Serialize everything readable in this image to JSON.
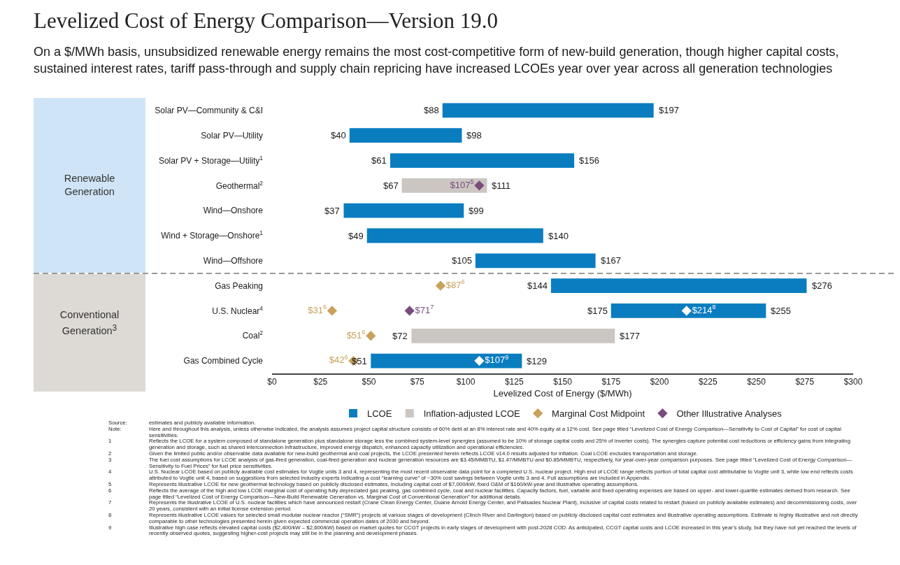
{
  "chart_data": {
    "type": "bar",
    "orientation": "horizontal",
    "title": "Levelized Cost of Energy Comparison—Version 19.0",
    "subtitle": "On a $/MWh basis, unsubsidized renewable energy remains the most cost-competitive form of new-build generation, though higher capital costs, sustained interest rates, tariff pass-through and supply chain repricing have increased LCOEs year over year across all generation technologies",
    "categories": [
      "Solar PV—Community & C&I",
      "Solar PV—Utility",
      "Solar PV + Storage—Utility$^{1}$",
      "Geothermal$^{2}$",
      "Wind—Onshore",
      "Wind + Storage—Onshore$^{1}$",
      "Wind—Offshore",
      "Gas Peaking",
      "U.S. Nuclear$^{4}$",
      "Coal$^{2}$",
      "Gas Combined Cycle"
    ],
    "series": [
      {
        "name": "LCOE",
        "color": "#0a7dc0",
        "base": [
          88,
          40,
          61,
          null,
          37,
          49,
          105,
          144,
          175,
          null,
          51
        ],
        "values": [
          109,
          58,
          95,
          null,
          62,
          91,
          62,
          132,
          80,
          null,
          78
        ]
      },
      {
        "name": "Inflation-adjusted LCOE",
        "color": "#cbc6c1",
        "base": [
          null,
          null,
          null,
          67,
          null,
          null,
          null,
          null,
          null,
          72,
          null
        ],
        "values": [
          null,
          null,
          null,
          44,
          null,
          null,
          null,
          null,
          null,
          105,
          null
        ]
      },
      {
        "name": "Marginal Cost Midpoint",
        "type": "scatter",
        "color": "#c9a15b",
        "x": [
          "Gas Peaking",
          "U.S. Nuclear$^{4}$",
          "Coal$^{2}$",
          "Gas Combined Cycle"
        ],
        "values": [
          87,
          31,
          51,
          42
        ],
        "value_labels": [
          "$87$^{6}$",
          "$31$^{6}$",
          "$51$^{6}$",
          "$42$^{6}$"
        ]
      },
      {
        "name": "Other Illustrative Analyses",
        "type": "scatter",
        "colors": [
          "#7b4a7f",
          "#7b4a7f",
          "#ffffff",
          "#ffffff"
        ],
        "x": [
          "Geothermal$^{2}$",
          "U.S. Nuclear$^{4}$",
          "U.S. Nuclear$^{4}$",
          "Gas Combined Cycle"
        ],
        "values": [
          107,
          71,
          214,
          107
        ],
        "value_labels": [
          "$107$^{5}$",
          "$71$^{7}$",
          "$214$^{8}$",
          "$107$^{9}$"
        ]
      }
    ],
    "xlim": [
      0,
      300
    ],
    "xticks": [
      {
        "value": 0,
        "label": "$0"
      },
      {
        "value": 25,
        "label": "$25"
      },
      {
        "value": 50,
        "label": "$50"
      },
      {
        "value": 75,
        "label": "$75"
      },
      {
        "value": 100,
        "label": "$100"
      },
      {
        "value": 125,
        "label": "$125"
      },
      {
        "value": 150,
        "label": "$150"
      },
      {
        "value": 175,
        "label": "$175"
      },
      {
        "value": 200,
        "label": "$200"
      },
      {
        "value": 225,
        "label": "$225"
      },
      {
        "value": 250,
        "label": "$250"
      },
      {
        "value": 275,
        "label": "$275"
      },
      {
        "value": 300,
        "label": "$300"
      }
    ],
    "xlabel": "Levelized Cost of Energy ($/MWh)",
    "marker": "diamond",
    "legend": "bottom",
    "grid": false,
    "annotations": [
      "Renewable Generation",
      "Conventional Generation$^{3}$",
      {
        "text": "$88",
        "x": 88,
        "y": "Solar PV—Community & C&I"
      },
      {
        "text": "$197",
        "x": 197,
        "y": "Solar PV—Community & C&I"
      },
      {
        "text": "$40",
        "x": 40,
        "y": "Solar PV—Utility"
      },
      {
        "text": "$98",
        "x": 98,
        "y": "Solar PV—Utility"
      },
      {
        "text": "$61",
        "x": 61,
        "y": "Solar PV + Storage—Utility$^{1}$"
      },
      {
        "text": "$156",
        "x": 156,
        "y": "Solar PV + Storage—Utility$^{1}$"
      },
      {
        "text": "$67",
        "x": 67,
        "y": "Geothermal$^{2}$"
      },
      {
        "text": "$111",
        "x": 111,
        "y": "Geothermal$^{2}$"
      },
      {
        "text": "$37",
        "x": 37,
        "y": "Wind—Onshore"
      },
      {
        "text": "$99",
        "x": 99,
        "y": "Wind—Onshore"
      },
      {
        "text": "$49",
        "x": 49,
        "y": "Wind + Storage—Onshore$^{1}$"
      },
      {
        "text": "$140",
        "x": 140,
        "y": "Wind + Storage—Onshore$^{1}$"
      },
      {
        "text": "$105",
        "x": 105,
        "y": "Wind—Offshore"
      },
      {
        "text": "$167",
        "x": 167,
        "y": "Wind—Offshore"
      },
      {
        "text": "$144",
        "x": 144,
        "y": "Gas Peaking"
      },
      {
        "text": "$276",
        "x": 276,
        "y": "Gas Peaking"
      },
      {
        "text": "$175",
        "x": 175,
        "y": "U.S. Nuclear$^{4}$"
      },
      {
        "text": "$255",
        "x": 255,
        "y": "U.S. Nuclear$^{4}$"
      },
      {
        "text": "$72",
        "x": 72,
        "y": "Coal$^{2}$"
      },
      {
        "text": "$177",
        "x": 177,
        "y": "Coal$^{2}$"
      },
      {
        "text": "$51",
        "x": 51,
        "y": "Gas Combined Cycle"
      },
      {
        "text": "$129",
        "x": 129,
        "y": "Gas Combined Cycle"
      },
      "Source: estimates and publicly available information.",
      "Note: Here and throughout this analysis, unless otherwise indicated, the analysis assumes project capital structure consists of 60% debt at an 8% interest rate and 40% equity at a 12% cost. See page titled “Levelized Cost of Energy Comparison—Sensitivity to Cost of Capital” for cost of capital sensitivities.",
      "1 Reflects the LCOE for a system composed of standalone generation plus standalone storage less the combined system-level synergies (assumed to be 10% of storage capital costs and 25% of inverter costs). The synergies capture potential cost reductions or efficiency gains from integrating generation and storage, such as shared interconnection infrastructure, improved energy dispatch, enhanced capacity utilization and operational efficiencies.",
      "2 Given the limited public and/or observable data available for new-build geothermal and coal projects, the LCOE presented herein reflects LCOE v14.0 results adjusted for inflation. Coal LCOE excludes transportation and storage.",
      "3 The fuel cost assumptions for LCOE analysis of gas-fired generation, coal-fired generation and nuclear generation resources are $3.45/MMBTU, $1.47/MMBTU and $0.85/MMBTU, respectively, for year-over-year comparison purposes. See page titled “Levelized Cost of Energy Comparison—Sensitivity to Fuel Prices” for fuel price sensitivities.",
      "4 U.S. Nuclear LCOE based on publicly available cost estimates for Vogtle units 3 and 4, representing the most recent observable data point for a completed U.S. nuclear project. High end of LCOE range reflects portion of total capital cost attributable to Vogtle unit 3, while low end reflects costs attributed to Vogtle unit 4, based on suggestions from selected industry experts indicating a cost “learning curve” of ~30% cost savings between Vogtle units 3 and 4. Full assumptions are included in Appendix.",
      "5 Represents illustrative LCOE for new geothermal technology based on publicly disclosed estimates, including capital cost of $7,000/kW, fixed O&M of $160/kW-year and illustrative operating assumptions.",
      "6 Reflects the average of the high and low LCOE marginal cost of operating fully depreciated gas peaking, gas combined cycle, coal and nuclear facilities. Capacity factors, fuel, variable and fixed operating expenses are based on upper- and lower-quartile estimates derived from research. See page titled “Levelized Cost of Energy Comparison—New-Build Renewable Generation vs. Marginal Cost of Conventional Generation” for additional details.",
      "7 Represents the illustrative LCOE of U.S. nuclear facilities which have announced restart (Crane Clean Energy Center, Duane Arnold Energy Center, and Palisades Nuclear Plant), inclusive of capital costs related to restart (based on publicly available estimates) and decommissioning costs, over 20 years, consistent with an initial license extension period.",
      "8 Represents illustrative LCOE values for selected small modular nuclear reactor (“SMR”) projects at various stages of development (Clinch River and Darlington) based on publicly disclosed capital cost estimates and illustrative operating assumptions. Estimate is highly illustrative and not directly comparable to other technologies presented herein given expected commercial operation dates of 2030 and beyond.",
      "9 Illustrative high case reflects elevated capital costs ($2,400/kW – $2,600/kW) based on market quotes for CCGT projects in early stages of development with post-2028 COD. As anticipated, CCGT capital costs and LCOE increased in this year’s study, but they have not yet reached the levels of recently observed quotes, suggesting higher-cost projects may still be in the planning and development phases."
    ]
  }
}
